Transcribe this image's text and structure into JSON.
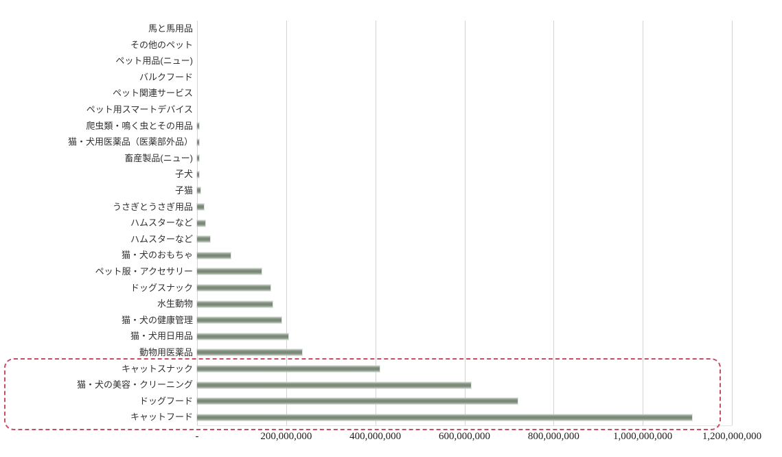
{
  "chart_data": {
    "type": "bar",
    "orientation": "horizontal",
    "title": "",
    "xlabel": "",
    "ylabel": "",
    "grid": true,
    "legend": "none",
    "x_max": 1200000000,
    "x_tick_interval": 200000000,
    "x_tick_labels": [
      "-",
      "200,000,000",
      "400,000,000",
      "600,000,000",
      "800,000,000",
      "1,000,000,000",
      "1,200,000,000"
    ],
    "categories": [
      "馬と馬用品",
      "その他のペット",
      "ペット用品(ニュー)",
      "バルクフード",
      "ペット関連サービス",
      "ペット用スマートデバイス",
      "爬虫類・鳴く虫とその用品",
      "猫・犬用医薬品（医薬部外品）",
      "畜産製品(ニュー)",
      "子犬",
      "子猫",
      "うさぎとうさぎ用品",
      "ハムスターなど",
      "ハムスターなど",
      "猫・犬のおもちゃ",
      "ペット服・アクセサリー",
      "ドッグスナック",
      "水生動物",
      "猫・犬の健康管理",
      "猫・犬用日用品",
      "動物用医薬品",
      "キャットスナック",
      "猫・犬の美容・クリーニング",
      "ドッグフード",
      "キャットフード"
    ],
    "values": [
      0,
      0,
      0,
      0,
      0,
      0,
      4000000,
      5000000,
      5000000,
      5000000,
      8000000,
      15000000,
      18000000,
      30000000,
      75000000,
      145000000,
      165000000,
      170000000,
      190000000,
      205000000,
      235000000,
      410000000,
      615000000,
      720000000,
      1110000000
    ],
    "colors": {
      "bar": "#7a8878",
      "gridline": "#d3d3d3",
      "label_text": "#2f2f2f",
      "tick_text": "#1c1c1c",
      "highlight_border": "#c84b64",
      "background": "#ffffff"
    },
    "highlight": {
      "shape": "dashed-rounded-rectangle",
      "categories": [
        "キャットスナック",
        "猫・犬の美容・クリーニング",
        "ドッグフード",
        "キャットフード"
      ],
      "row_start_index": 21,
      "row_end_index": 24
    }
  }
}
